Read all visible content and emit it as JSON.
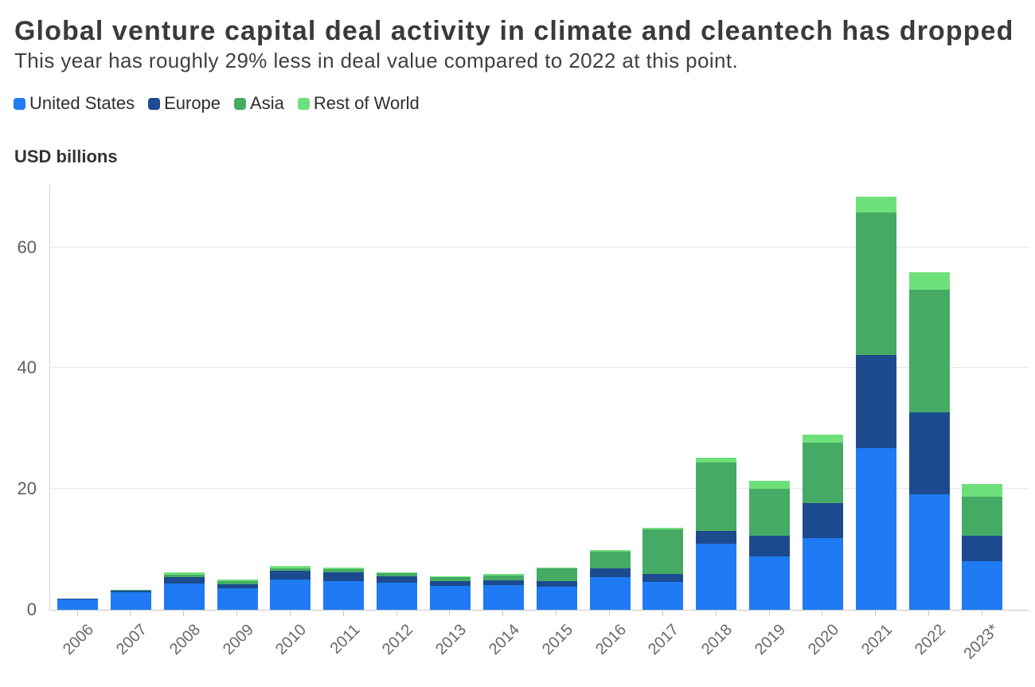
{
  "chart_data": {
    "type": "bar",
    "stacked": true,
    "title": "Global venture capital deal activity in climate and cleantech has dropped",
    "subtitle": "This year has roughly 29% less in deal value compared to 2022 at this point.",
    "axis_title": "USD billions",
    "categories": [
      "2006",
      "2007",
      "2008",
      "2009",
      "2010",
      "2011",
      "2012",
      "2013",
      "2014",
      "2015",
      "2016",
      "2017",
      "2018",
      "2019",
      "2020",
      "2021",
      "2022",
      "2023*"
    ],
    "series": [
      {
        "name": "United States",
        "color": "#1f7bf4",
        "values": [
          1.7,
          2.9,
          4.3,
          3.5,
          5.0,
          4.7,
          4.5,
          3.9,
          4.1,
          3.8,
          5.4,
          4.6,
          11.0,
          8.8,
          11.9,
          26.8,
          19.1,
          8.0
        ]
      },
      {
        "name": "Europe",
        "color": "#1c4b8f",
        "values": [
          0.1,
          0.3,
          1.1,
          0.7,
          1.4,
          1.5,
          1.1,
          0.8,
          0.8,
          1.0,
          1.4,
          1.3,
          2.1,
          3.5,
          5.7,
          15.4,
          13.6,
          4.3
        ]
      },
      {
        "name": "Asia",
        "color": "#45ab64",
        "values": [
          0,
          0.1,
          0.4,
          0.6,
          0.5,
          0.5,
          0.5,
          0.7,
          0.8,
          2.0,
          2.8,
          7.4,
          11.3,
          7.7,
          10.1,
          23.6,
          20.3,
          6.4
        ]
      },
      {
        "name": "Rest of World",
        "color": "#6ee07a",
        "values": [
          0,
          0,
          0.4,
          0.2,
          0.3,
          0.3,
          0.1,
          0.1,
          0.2,
          0.2,
          0.3,
          0.3,
          0.8,
          1.3,
          1.3,
          2.6,
          2.9,
          2.1
        ]
      }
    ],
    "yticks": [
      0,
      20,
      40,
      60
    ],
    "ylim": [
      0,
      70.4
    ],
    "grid": "horizontal",
    "legend_position": "top-left"
  }
}
